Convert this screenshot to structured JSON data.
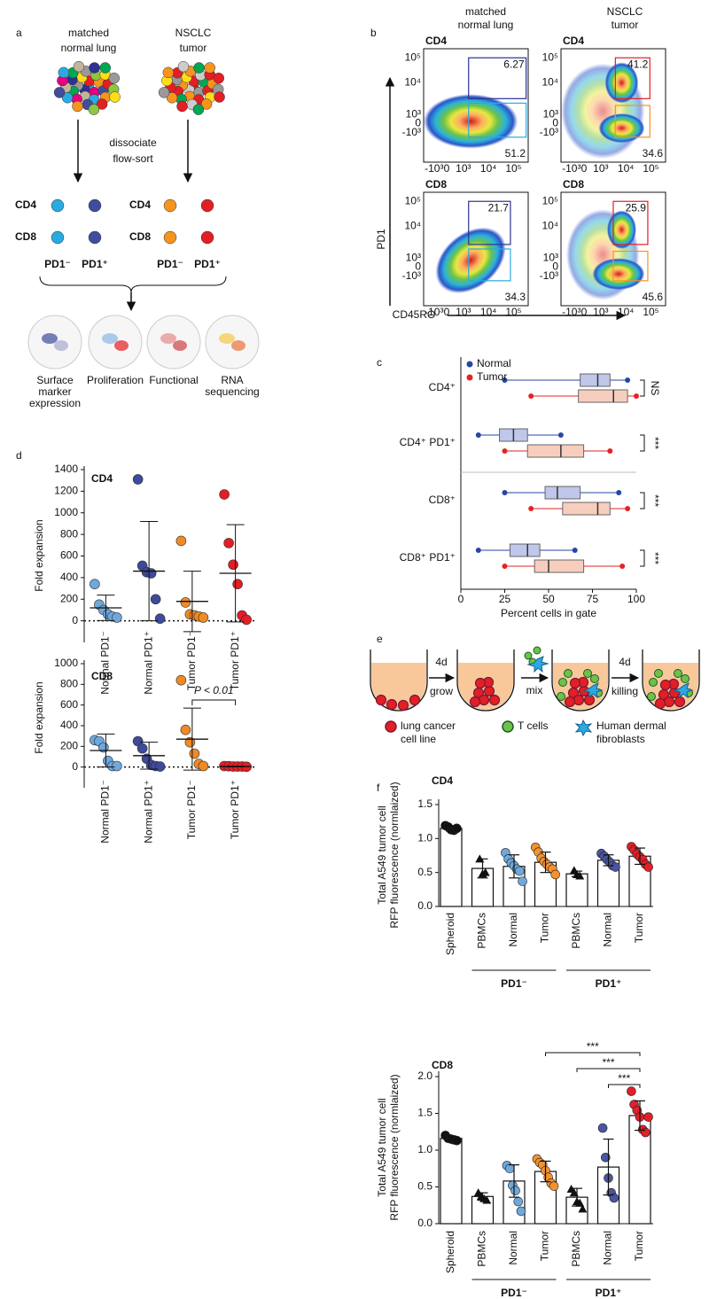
{
  "panel_labels": [
    "a",
    "b",
    "c",
    "d",
    "e",
    "f"
  ],
  "panel_a": {
    "sources": [
      [
        "matched",
        "normal lung"
      ],
      [
        "NSCLC",
        "tumor"
      ]
    ],
    "process": [
      "dissociate",
      "flow-sort"
    ],
    "row_labels": [
      "CD4",
      "CD8"
    ],
    "column_labels": [
      "PD1⁻",
      "PD1⁺",
      "PD1⁻",
      "PD1⁺"
    ],
    "outputs": [
      [
        "Surface",
        "marker",
        "expression"
      ],
      [
        "Proliferation"
      ],
      [
        "Functional"
      ],
      [
        "RNA",
        "sequencing"
      ]
    ]
  },
  "panel_b": {
    "column_headers": [
      [
        "matched",
        "normal lung"
      ],
      [
        "NSCLC",
        "tumor"
      ]
    ],
    "y_label": "PD1",
    "x_label": "CD45RO",
    "y_ticks": [
      "10⁵",
      "10⁴",
      "10³",
      "0",
      "-10³"
    ],
    "x_ticks": [
      "-10³",
      "0",
      "10³",
      "10⁴",
      "10⁵"
    ],
    "plots": [
      {
        "title": "CD4",
        "gates": [
          6.27,
          51.2
        ]
      },
      {
        "title": "CD4",
        "gates": [
          41.2,
          34.6
        ]
      },
      {
        "title": "CD8",
        "gates": [
          21.7,
          34.3
        ]
      },
      {
        "title": "CD8",
        "gates": [
          25.9,
          45.6
        ]
      }
    ]
  },
  "panel_e": {
    "steps": [
      [
        "4d",
        "grow"
      ],
      [
        "mix"
      ],
      [
        "4d",
        "killing"
      ]
    ],
    "legend": [
      [
        "lung cancer",
        "cell line"
      ],
      [
        "T cells"
      ],
      [
        "Human dermal",
        "fibroblasts"
      ]
    ]
  },
  "chart_data": [
    {
      "type": "box",
      "categories": [
        "CD4⁺",
        "CD4⁺ PD1⁺",
        "CD8⁺",
        "CD8⁺ PD1⁺"
      ],
      "series": [
        {
          "name": "Normal",
          "color": "#2547a3",
          "box_color": "#b4bde6",
          "whisker_low": [
            25,
            10,
            25,
            10
          ],
          "q1": [
            68,
            22,
            48,
            28
          ],
          "median": [
            78,
            30,
            55,
            38
          ],
          "q3": [
            85,
            38,
            68,
            45
          ],
          "whisker_high": [
            95,
            57,
            90,
            65
          ]
        },
        {
          "name": "Tumor",
          "color": "#e52324",
          "box_color": "#f6c5b3",
          "whisker_low": [
            40,
            25,
            40,
            25
          ],
          "q1": [
            67,
            38,
            58,
            42
          ],
          "median": [
            87,
            57,
            78,
            50
          ],
          "q3": [
            95,
            70,
            85,
            70
          ],
          "whisker_high": [
            100,
            85,
            95,
            92
          ]
        }
      ],
      "xlim": [
        0,
        100
      ],
      "xticks": [
        0,
        25,
        50,
        75,
        100
      ],
      "x_label": "Percent cells in gate",
      "annotations": [
        "NS",
        "***",
        "***",
        "***"
      ]
    },
    {
      "type": "dot",
      "title": "CD4",
      "y_label": "Fold expansion",
      "categories": [
        "Normal PD1⁻",
        "Normal PD1⁺",
        "Tumor PD1⁻",
        "Tumor PD1⁺"
      ],
      "colors": [
        "#6fa8dc",
        "#3e4a9a",
        "#f08a24",
        "#e31e24"
      ],
      "points": [
        [
          340,
          150,
          100,
          60,
          40,
          30
        ],
        [
          1310,
          510,
          450,
          440,
          200,
          20
        ],
        [
          740,
          170,
          60,
          50,
          40,
          30
        ],
        [
          1170,
          720,
          520,
          340,
          50,
          10
        ]
      ],
      "mean": [
        120,
        460,
        180,
        440
      ],
      "sd": [
        118,
        460,
        280,
        450
      ],
      "ylim": [
        -200,
        1400
      ],
      "yticks": [
        0,
        200,
        400,
        600,
        800,
        1000,
        1200,
        1400
      ]
    },
    {
      "type": "dot",
      "title": "CD8",
      "y_label": "Fold expansion",
      "categories": [
        "Normal PD1⁻",
        "Normal PD1⁺",
        "Tumor PD1⁻",
        "Tumor PD1⁺"
      ],
      "colors": [
        "#6fa8dc",
        "#3e4a9a",
        "#f08a24",
        "#e31e24"
      ],
      "points": [
        [
          260,
          250,
          190,
          60,
          10,
          10
        ],
        [
          250,
          180,
          80,
          20,
          10,
          5
        ],
        [
          840,
          360,
          240,
          130,
          30,
          10
        ],
        [
          10,
          8,
          5,
          5,
          5,
          3
        ]
      ],
      "mean": [
        160,
        110,
        270,
        5
      ],
      "sd": [
        160,
        130,
        300,
        3
      ],
      "ylim": [
        -200,
        1000
      ],
      "yticks": [
        0,
        200,
        400,
        600,
        800,
        1000
      ],
      "annotation": "P < 0.01"
    },
    {
      "type": "bar",
      "title": "CD4",
      "y_label": [
        "Total A549 tumor cell",
        "RFP fluorescence (normlaized)"
      ],
      "categories": [
        "Spheroid",
        "PBMCs",
        "Normal",
        "Tumor",
        "PBMCs",
        "Normal",
        "Tumor"
      ],
      "values": [
        1.15,
        0.56,
        0.59,
        0.65,
        0.48,
        0.68,
        0.74
      ],
      "sd": [
        0.04,
        0.14,
        0.17,
        0.15,
        0.04,
        0.08,
        0.12
      ],
      "points": [
        [
          1.19,
          1.17,
          1.13,
          1.12,
          1.15
        ],
        [
          0.7,
          0.48,
          0.5
        ],
        [
          0.79,
          0.7,
          0.64,
          0.6,
          0.55,
          0.52,
          0.37
        ],
        [
          0.87,
          0.8,
          0.71,
          0.66,
          0.62,
          0.58,
          0.55,
          0.47
        ],
        [
          0.53,
          0.47,
          0.45
        ],
        [
          0.78,
          0.74,
          0.69,
          0.65,
          0.6,
          0.58
        ],
        [
          0.88,
          0.83,
          0.77,
          0.73,
          0.69,
          0.62,
          0.58
        ]
      ],
      "colors": [
        "#111111",
        "#111111",
        "#6fa8dc",
        "#f39231",
        "#111111",
        "#4a55a2",
        "#e0202a"
      ],
      "markers": [
        "circle",
        "triangle",
        "circle",
        "circle",
        "triangle",
        "circle",
        "circle"
      ],
      "group_labels": [
        "PD1⁻",
        "PD1⁺"
      ],
      "ylim": [
        0,
        1.5
      ],
      "yticks": [
        {
          "value": 0,
          "label": "0.0"
        },
        0.5,
        {
          "value": 1,
          "label": "1.0"
        },
        1.5
      ]
    },
    {
      "type": "bar",
      "title": "CD8",
      "y_label": [
        "Total A549 tumor cell",
        "RFP fluorescence (normlaized)"
      ],
      "categories": [
        "Spheroid",
        "PBMCs",
        "Normal",
        "Tumor",
        "PBMCs",
        "Normal",
        "Tumor"
      ],
      "values": [
        1.16,
        0.37,
        0.58,
        0.71,
        0.36,
        0.77,
        1.47
      ],
      "sd": [
        0.03,
        0.05,
        0.22,
        0.14,
        0.12,
        0.38,
        0.2
      ],
      "points": [
        [
          1.2,
          1.16,
          1.15,
          1.14,
          1.13
        ],
        [
          0.42,
          0.37,
          0.34,
          0.32
        ],
        [
          0.79,
          0.75,
          0.52,
          0.45,
          0.3,
          0.17
        ],
        [
          0.88,
          0.83,
          0.8,
          0.72,
          0.63,
          0.55,
          0.51
        ],
        [
          0.47,
          0.42,
          0.3,
          0.28,
          0.2
        ],
        [
          1.3,
          0.9,
          0.62,
          0.42,
          0.35
        ],
        [
          1.8,
          1.62,
          1.54,
          1.45,
          1.28,
          1.24,
          1.45
        ]
      ],
      "colors": [
        "#111111",
        "#111111",
        "#6fa8dc",
        "#f39231",
        "#111111",
        "#4a55a2",
        "#e0202a"
      ],
      "markers": [
        "circle",
        "triangle",
        "circle",
        "circle",
        "triangle",
        "circle",
        "circle"
      ],
      "group_labels": [
        "PD1⁻",
        "PD1⁺"
      ],
      "annotations": [
        "***",
        "***",
        "***"
      ],
      "ylim": [
        0,
        2
      ],
      "yticks": [
        {
          "value": 0,
          "label": "0.0"
        },
        0.5,
        {
          "value": 1,
          "label": "1.0"
        },
        1.5,
        {
          "value": 2,
          "label": "2.0"
        }
      ]
    }
  ]
}
